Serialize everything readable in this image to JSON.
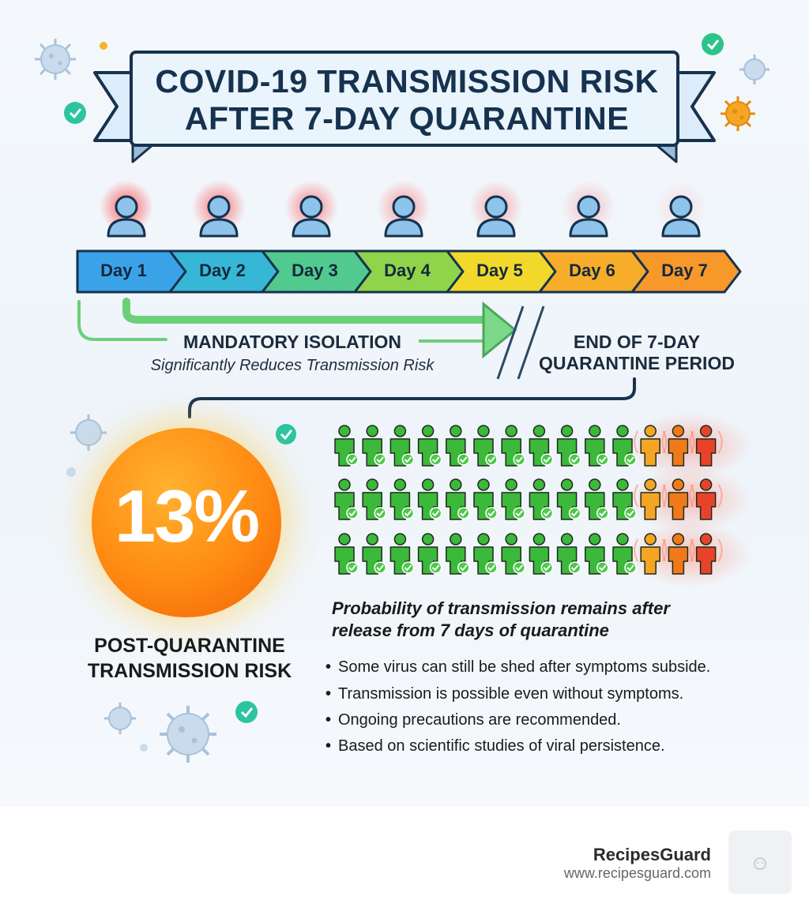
{
  "title": {
    "line1": "COVID-19 TRANSMISSION RISK",
    "line2": "AFTER 7-DAY QUARANTINE"
  },
  "timeline": {
    "days": [
      {
        "label": "Day 1",
        "color": "#3aa3e8"
      },
      {
        "label": "Day 2",
        "color": "#37b7d6"
      },
      {
        "label": "Day 3",
        "color": "#52c98f"
      },
      {
        "label": "Day 4",
        "color": "#8fd44a"
      },
      {
        "label": "Day 5",
        "color": "#f2d82a"
      },
      {
        "label": "Day 6",
        "color": "#f7ad2a"
      },
      {
        "label": "Day 7",
        "color": "#f7982a"
      }
    ],
    "infection_glow_levels": [
      1.0,
      0.85,
      0.75,
      0.6,
      0.5,
      0.35,
      0.15
    ]
  },
  "isolation": {
    "title": "MANDATORY ISOLATION",
    "subtitle": "Significantly Reduces Transmission Risk"
  },
  "end_period": {
    "line1": "END OF 7-DAY",
    "line2": "QUARANTINE PERIOD"
  },
  "risk": {
    "value": "13%",
    "label_line1": "POST-QUARANTINE",
    "label_line2": "TRANSMISSION RISK"
  },
  "people_grid": {
    "rows": 3,
    "safe_per_row": 11,
    "at_risk_per_row": 3,
    "safe_color": "#3cb83a",
    "warning_colors": [
      "#f5a524",
      "#f07a1a",
      "#e8432a"
    ]
  },
  "probability": {
    "line1": "Probability of transmission remains after",
    "line2": "release from 7 days of quarantine"
  },
  "facts": [
    "Some virus can still be shed after symptoms subside.",
    "Transmission is possible even without symptoms.",
    "Ongoing precautions are recommended.",
    "Based on scientific studies of viral persistence."
  ],
  "footer": {
    "brand": "RecipesGuard",
    "url": "www.recipesguard.com"
  },
  "icons": {
    "virus": "virus-icon",
    "check": "checkmark-badge-icon",
    "person": "person-icon"
  },
  "colors": {
    "navy": "#16324e",
    "banner": "#e6f2fc",
    "isolation_arrow": "#5cc46a",
    "risk_orange": "#ff8a12"
  }
}
